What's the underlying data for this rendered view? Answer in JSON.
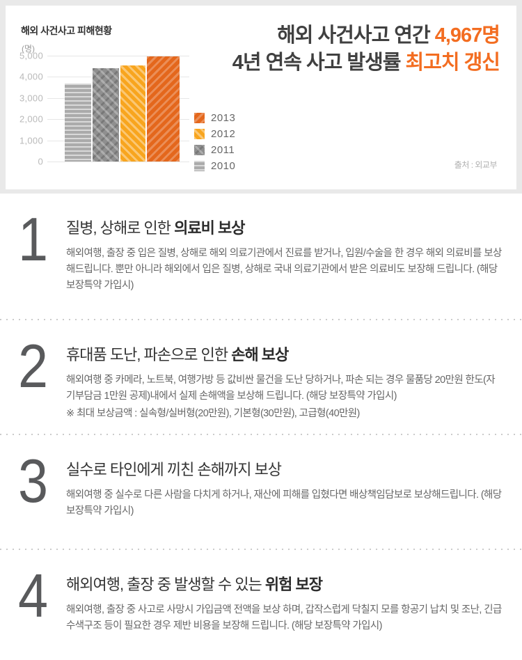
{
  "hero": {
    "headline": {
      "line1_prefix": "해외 사건사고 연간 ",
      "line1_highlight": "4,967명",
      "line2_prefix": "4년 연속 사고 발생률 ",
      "line2_highlight": "최고치 갱신",
      "highlight_color": "#f36d21"
    },
    "source": "출처 : 외교부"
  },
  "chart_data": {
    "type": "bar",
    "title": "해외 사건사고 피해현황",
    "unit_label": "(명)",
    "categories": [
      "2010",
      "2011",
      "2012",
      "2013"
    ],
    "values": [
      3700,
      4400,
      4550,
      4967
    ],
    "colors": [
      "#ababab",
      "#8f8f8f",
      "#f8a51e",
      "#e4671c"
    ],
    "ylim": [
      0,
      5000
    ],
    "ytick_labels": [
      "5,000",
      "4,000",
      "3,000",
      "2,000",
      "1,000",
      "0"
    ],
    "grid": true,
    "legend_position": "right",
    "legend": [
      {
        "label": "2013",
        "color": "#e4671c"
      },
      {
        "label": "2012",
        "color": "#f8a51e"
      },
      {
        "label": "2011",
        "color": "#8f8f8f"
      },
      {
        "label": "2010",
        "color": "#ababab"
      }
    ]
  },
  "sections": [
    {
      "number": "1",
      "title_regular": "질병, 상해로 인한 ",
      "title_bold": "의료비 보상",
      "body": "해외여행, 출장 중 입은 질병, 상해로 해외 의료기관에서 진료를 받거나, 입원/수술을 한 경우 해외 의료비를 보상해드립니다. 뿐만 아니라 해외에서 입은 질병, 상해로 국내 의료기관에서 받은 의료비도 보장해 드립니다. (해당 보장특약 가입시)",
      "note": ""
    },
    {
      "number": "2",
      "title_regular": "휴대품 도난, 파손으로 인한 ",
      "title_bold": "손해 보상",
      "body": "해외여행 중 카메라, 노트북, 여행가방 등 값비싼 물건을 도난 당하거나, 파손 되는 경우 물품당 20만원 한도(자기부담금 1만원 공제)내에서 실제 손해액을 보상해 드립니다. (해당 보장특약 가입시)",
      "note": "※ 최대 보상금액 : 실속형/실버형(20만원), 기본형(30만원), 고급형(40만원)"
    },
    {
      "number": "3",
      "title_regular": "실수로 타인에게 끼친 손해까지 보상",
      "title_bold": "",
      "body": "해외여행 중 실수로 다른 사람을 다치게 하거나, 재산에 피해를 입혔다면 배상책임담보로 보상해드립니다. (해당 보장특약 가입시)",
      "note": ""
    },
    {
      "number": "4",
      "title_regular": "해외여행, 출장 중 발생할 수 있는 ",
      "title_bold": "위험 보장",
      "body": "해외여행, 출장 중 사고로 사망시 가입금액 전액을 보상 하며, 갑작스럽게 닥칠지 모를 항공기 납치 및 조난, 긴급 수색구조 등이 필요한 경우 제반 비용을 보장해 드립니다. (해당 보장특약 가입시)",
      "note": ""
    }
  ]
}
